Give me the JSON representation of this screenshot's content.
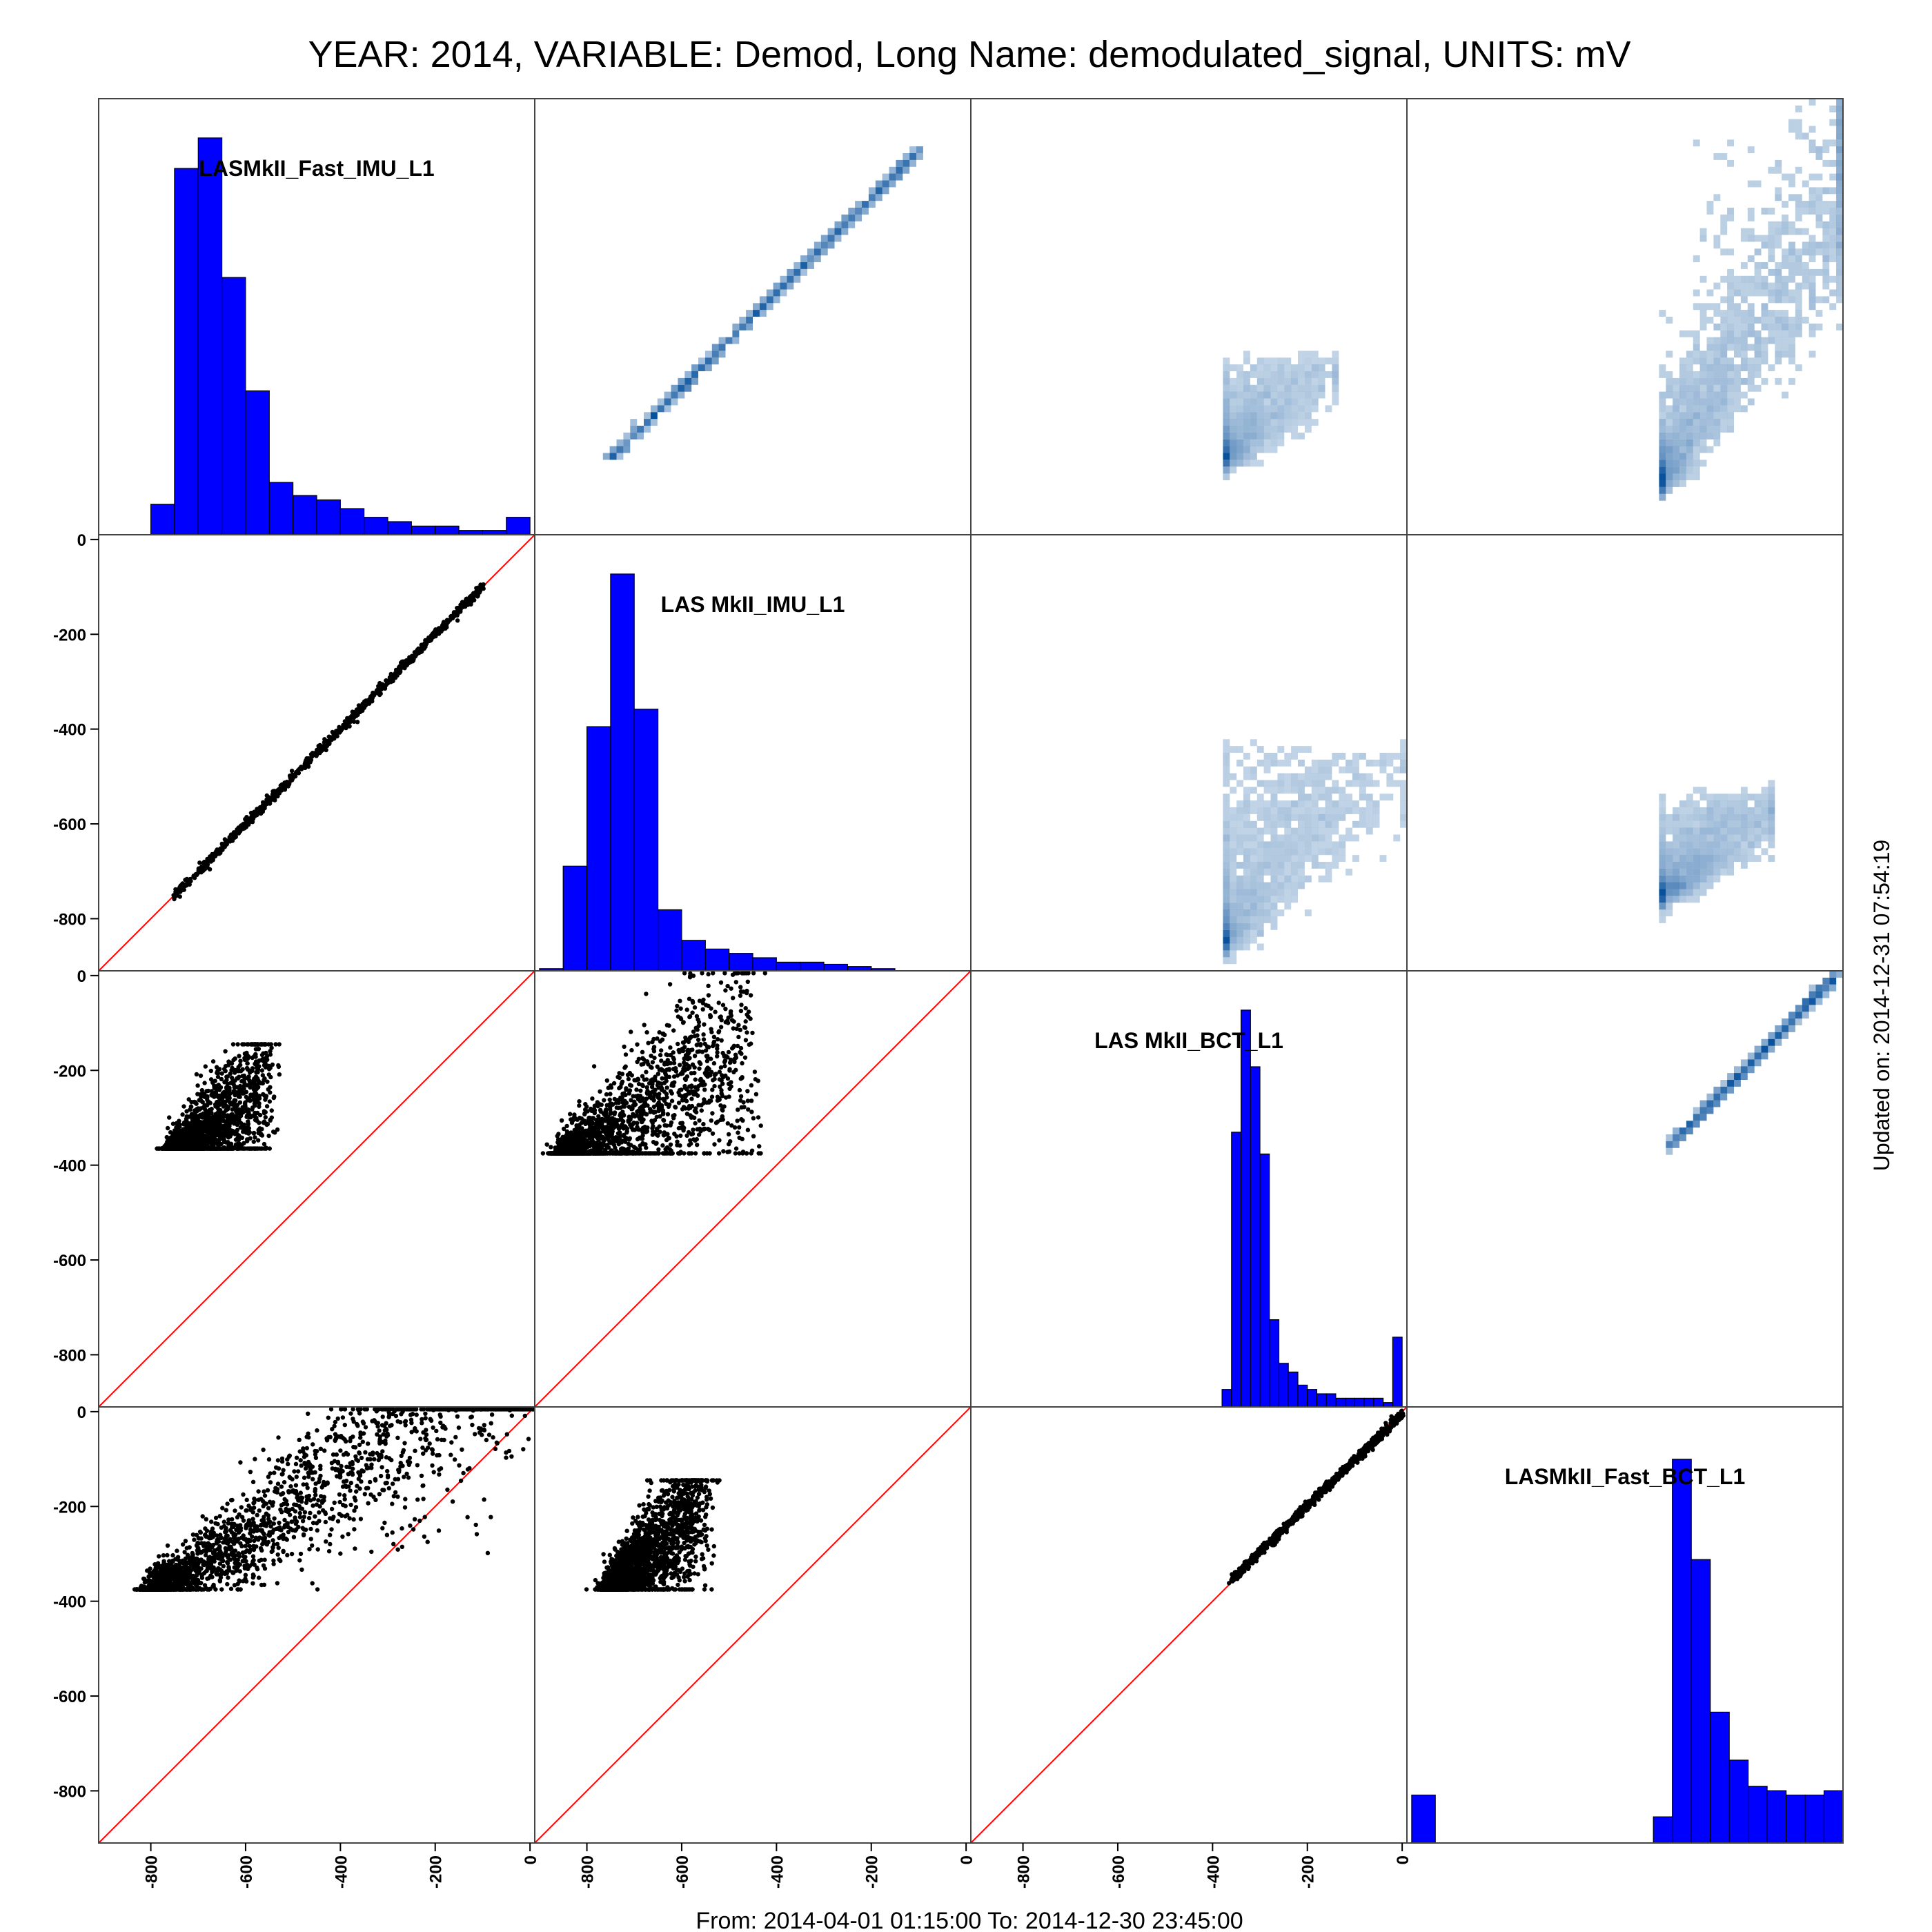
{
  "title": "YEAR: 2014, VARIABLE: Demod, Long Name: demodulated_signal, UNITS: mV",
  "footer": "From: 2014-04-01 01:15:00 To: 2014-12-30 23:45:00",
  "side_label": "Updated on: 2014-12-31 07:54:19",
  "colors": {
    "hist_fill": "#0000ff",
    "points": "#000000",
    "identity_line": "#ff0000",
    "density": "#08519c"
  },
  "chart_data": {
    "type": "scatter",
    "layout": "scatterplot-matrix",
    "variables": [
      "LASMkII_Fast_IMU_L1",
      "LAS MkII_IMU_L1",
      "LAS MkII_BCT_L1",
      "LASMkII_Fast_BCT_L1"
    ],
    "axis_range": [
      -910,
      10
    ],
    "tick_values": [
      -800,
      -600,
      -400,
      -200,
      0
    ],
    "tick_labels": [
      "-800",
      "-600",
      "-400",
      "-200",
      "0"
    ],
    "upper_panels": "2d density",
    "lower_panels": "scatter with identity line",
    "diagonal": [
      {
        "variable": "LASMkII_Fast_IMU_L1",
        "bins": [
          [
            -800,
            -750,
            0.07
          ],
          [
            -750,
            -700,
            0.84
          ],
          [
            -700,
            -650,
            0.91
          ],
          [
            -650,
            -600,
            0.59
          ],
          [
            -600,
            -550,
            0.33
          ],
          [
            -550,
            -500,
            0.12
          ],
          [
            -500,
            -450,
            0.09
          ],
          [
            -450,
            -400,
            0.08
          ],
          [
            -400,
            -350,
            0.06
          ],
          [
            -350,
            -300,
            0.04
          ],
          [
            -300,
            -250,
            0.03
          ],
          [
            -250,
            -200,
            0.02
          ],
          [
            -200,
            -150,
            0.02
          ],
          [
            -150,
            -100,
            0.01
          ],
          [
            -100,
            -50,
            0.01
          ],
          [
            -50,
            0,
            0.04
          ]
        ]
      },
      {
        "variable": "LAS MkII_IMU_L1",
        "bins": [
          [
            -900,
            -850,
            0.005
          ],
          [
            -850,
            -800,
            0.24
          ],
          [
            -800,
            -750,
            0.56
          ],
          [
            -750,
            -700,
            0.91
          ],
          [
            -700,
            -650,
            0.6
          ],
          [
            -650,
            -600,
            0.14
          ],
          [
            -600,
            -550,
            0.07
          ],
          [
            -550,
            -500,
            0.05
          ],
          [
            -500,
            -450,
            0.04
          ],
          [
            -450,
            -400,
            0.03
          ],
          [
            -400,
            -350,
            0.02
          ],
          [
            -350,
            -300,
            0.02
          ],
          [
            -300,
            -250,
            0.015
          ],
          [
            -250,
            -200,
            0.01
          ],
          [
            -200,
            -150,
            0.005
          ]
        ]
      },
      {
        "variable": "LAS MkII_BCT_L1",
        "bins": [
          [
            -380,
            -360,
            0.04
          ],
          [
            -360,
            -340,
            0.63
          ],
          [
            -340,
            -320,
            0.91
          ],
          [
            -320,
            -300,
            0.78
          ],
          [
            -300,
            -280,
            0.58
          ],
          [
            -280,
            -260,
            0.2
          ],
          [
            -260,
            -240,
            0.1
          ],
          [
            -240,
            -220,
            0.08
          ],
          [
            -220,
            -200,
            0.05
          ],
          [
            -200,
            -180,
            0.04
          ],
          [
            -180,
            -160,
            0.03
          ],
          [
            -160,
            -140,
            0.03
          ],
          [
            -140,
            -120,
            0.02
          ],
          [
            -120,
            -100,
            0.02
          ],
          [
            -100,
            -80,
            0.02
          ],
          [
            -80,
            -60,
            0.02
          ],
          [
            -60,
            -40,
            0.02
          ],
          [
            -40,
            -20,
            0.01
          ],
          [
            -20,
            0,
            0.16
          ]
        ]
      },
      {
        "variable": "LASMkII_Fast_BCT_L1",
        "bins": [
          [
            -900,
            -850,
            0.11
          ],
          [
            -390,
            -350,
            0.06
          ],
          [
            -350,
            -310,
            0.88
          ],
          [
            -310,
            -270,
            0.65
          ],
          [
            -270,
            -230,
            0.3
          ],
          [
            -230,
            -190,
            0.19
          ],
          [
            -190,
            -150,
            0.13
          ],
          [
            -150,
            -110,
            0.12
          ],
          [
            -110,
            -70,
            0.11
          ],
          [
            -70,
            -30,
            0.11
          ],
          [
            -30,
            10,
            0.12
          ]
        ]
      }
    ],
    "pairs": [
      {
        "row": 1,
        "col": 0,
        "x": "LASMkII_Fast_IMU_L1",
        "y": "LAS MkII_IMU_L1",
        "shape": "tight linear",
        "x_range": [
          -750,
          -100
        ],
        "y_range": [
          -750,
          -100
        ],
        "slope": 1.0,
        "intercept": 0
      },
      {
        "row": 2,
        "col": 0,
        "x": "LASMkII_Fast_IMU_L1",
        "y": "LAS MkII_BCT_L1",
        "shape": "cloud",
        "x_range": [
          -750,
          -550
        ],
        "y_range": [
          -350,
          -150
        ],
        "slope": 0.75,
        "intercept": 180
      },
      {
        "row": 2,
        "col": 1,
        "x": "LAS MkII_IMU_L1",
        "y": "LAS MkII_BCT_L1",
        "shape": "wide cloud",
        "x_range": [
          -850,
          -450
        ],
        "y_range": [
          -360,
          0
        ],
        "slope": 0.6,
        "intercept": 120
      },
      {
        "row": 3,
        "col": 0,
        "x": "LASMkII_Fast_IMU_L1",
        "y": "LASMkII_Fast_BCT_L1",
        "shape": "wide cloud",
        "x_range": [
          -800,
          0
        ],
        "y_range": [
          -360,
          0
        ],
        "slope": 0.65,
        "intercept": 130
      },
      {
        "row": 3,
        "col": 1,
        "x": "LAS MkII_IMU_L1",
        "y": "LASMkII_Fast_BCT_L1",
        "shape": "cloud",
        "x_range": [
          -750,
          -550
        ],
        "y_range": [
          -360,
          -150
        ],
        "slope": 0.9,
        "intercept": 300
      },
      {
        "row": 3,
        "col": 2,
        "x": "LAS MkII_BCT_L1",
        "y": "LASMkII_Fast_BCT_L1",
        "shape": "tight linear",
        "x_range": [
          -360,
          0
        ],
        "y_range": [
          -360,
          0
        ],
        "slope": 0.97,
        "intercept": -5
      }
    ]
  }
}
